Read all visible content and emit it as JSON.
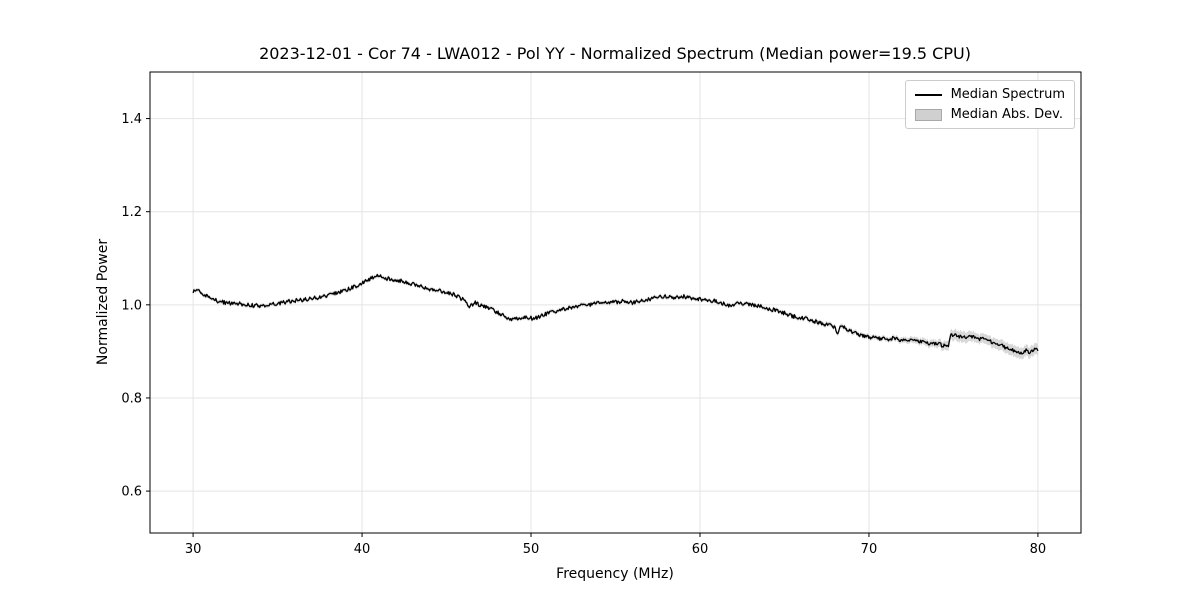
{
  "figure": {
    "background": "#ffffff"
  },
  "chart_data": {
    "type": "line",
    "title": "2023-12-01 - Cor 74 - LWA012 - Pol YY - Normalized Spectrum (Median power=19.5 CPU)",
    "xlabel": "Frequency (MHz)",
    "ylabel": "Normalized Power",
    "xlim": [
      27.45,
      82.55
    ],
    "ylim": [
      0.51,
      1.5
    ],
    "x_range": [
      30,
      80
    ],
    "x_ticks": [
      30,
      40,
      50,
      60,
      70,
      80
    ],
    "x_tick_labels": [
      "30",
      "40",
      "50",
      "60",
      "70",
      "80"
    ],
    "y_ticks": [
      0.6,
      0.8,
      1.0,
      1.2,
      1.4
    ],
    "y_tick_labels": [
      "0.6",
      "0.8",
      "1.0",
      "1.2",
      "1.4"
    ],
    "grid": true,
    "colors": {
      "grid": "#e4e4e4",
      "spine": "#000000",
      "text": "#000000",
      "background": "#ffffff"
    },
    "legend": {
      "position": "upper right",
      "entries": [
        {
          "label": "Median Spectrum",
          "type": "line",
          "color": "#000000"
        },
        {
          "label": "Median Abs. Dev.",
          "type": "patch",
          "fill": "#d0d0d0",
          "edge": "#a8a8a8"
        }
      ]
    },
    "noise_amplitude": 0.0042,
    "sample_step": 0.05,
    "series": [
      {
        "name": "Median Spectrum",
        "type": "line",
        "color": "#000000",
        "points": [
          [
            30.0,
            1.028
          ],
          [
            30.3,
            1.034
          ],
          [
            30.6,
            1.022
          ],
          [
            31.0,
            1.014
          ],
          [
            31.5,
            1.008
          ],
          [
            32.0,
            1.004
          ],
          [
            32.5,
            1.003
          ],
          [
            33.0,
            1.001
          ],
          [
            33.5,
            0.999
          ],
          [
            34.0,
            0.998
          ],
          [
            34.5,
            1.0
          ],
          [
            35.0,
            1.003
          ],
          [
            35.5,
            1.006
          ],
          [
            36.0,
            1.009
          ],
          [
            36.5,
            1.011
          ],
          [
            37.0,
            1.014
          ],
          [
            37.5,
            1.016
          ],
          [
            38.0,
            1.02
          ],
          [
            38.5,
            1.026
          ],
          [
            39.0,
            1.031
          ],
          [
            39.5,
            1.038
          ],
          [
            40.0,
            1.047
          ],
          [
            40.5,
            1.056
          ],
          [
            40.9,
            1.064
          ],
          [
            41.3,
            1.058
          ],
          [
            42.0,
            1.054
          ],
          [
            42.5,
            1.05
          ],
          [
            43.0,
            1.045
          ],
          [
            43.5,
            1.04
          ],
          [
            44.0,
            1.034
          ],
          [
            44.5,
            1.031
          ],
          [
            45.0,
            1.027
          ],
          [
            45.5,
            1.021
          ],
          [
            46.0,
            1.011
          ],
          [
            46.3,
            0.997
          ],
          [
            46.7,
            1.004
          ],
          [
            47.0,
            1.0
          ],
          [
            47.5,
            0.993
          ],
          [
            48.0,
            0.984
          ],
          [
            48.5,
            0.975
          ],
          [
            48.9,
            0.968
          ],
          [
            49.3,
            0.972
          ],
          [
            49.7,
            0.974
          ],
          [
            50.2,
            0.97
          ],
          [
            50.6,
            0.976
          ],
          [
            51.0,
            0.982
          ],
          [
            51.5,
            0.987
          ],
          [
            52.0,
            0.991
          ],
          [
            52.5,
            0.995
          ],
          [
            53.0,
            0.998
          ],
          [
            53.5,
            1.001
          ],
          [
            54.0,
            1.003
          ],
          [
            54.5,
            1.005
          ],
          [
            55.0,
            1.006
          ],
          [
            55.5,
            1.008
          ],
          [
            56.0,
            1.004
          ],
          [
            56.5,
            1.009
          ],
          [
            57.0,
            1.012
          ],
          [
            57.5,
            1.016
          ],
          [
            58.0,
            1.018
          ],
          [
            58.5,
            1.016
          ],
          [
            59.0,
            1.018
          ],
          [
            59.5,
            1.015
          ],
          [
            60.0,
            1.012
          ],
          [
            60.5,
            1.01
          ],
          [
            61.0,
            1.008
          ],
          [
            61.8,
            0.997
          ],
          [
            62.2,
            1.005
          ],
          [
            62.6,
            1.003
          ],
          [
            63.0,
            1.0
          ],
          [
            63.5,
            0.997
          ],
          [
            64.0,
            0.992
          ],
          [
            64.5,
            0.988
          ],
          [
            65.0,
            0.982
          ],
          [
            65.5,
            0.975
          ],
          [
            66.0,
            0.972
          ],
          [
            66.5,
            0.968
          ],
          [
            67.0,
            0.962
          ],
          [
            67.5,
            0.958
          ],
          [
            68.0,
            0.952
          ],
          [
            68.15,
            0.936
          ],
          [
            68.35,
            0.958
          ],
          [
            68.7,
            0.948
          ],
          [
            69.0,
            0.942
          ],
          [
            69.5,
            0.936
          ],
          [
            70.0,
            0.931
          ],
          [
            70.5,
            0.928
          ],
          [
            71.0,
            0.926
          ],
          [
            71.5,
            0.928
          ],
          [
            72.0,
            0.923
          ],
          [
            72.5,
            0.924
          ],
          [
            73.0,
            0.921
          ],
          [
            73.5,
            0.916
          ],
          [
            74.0,
            0.918
          ],
          [
            74.4,
            0.912
          ],
          [
            74.7,
            0.91
          ],
          [
            74.85,
            0.937
          ],
          [
            75.2,
            0.933
          ],
          [
            75.6,
            0.931
          ],
          [
            76.0,
            0.933
          ],
          [
            76.4,
            0.928
          ],
          [
            76.8,
            0.926
          ],
          [
            77.2,
            0.921
          ],
          [
            77.6,
            0.917
          ],
          [
            78.0,
            0.91
          ],
          [
            78.3,
            0.905
          ],
          [
            78.6,
            0.902
          ],
          [
            79.0,
            0.898
          ],
          [
            79.3,
            0.902
          ],
          [
            79.6,
            0.898
          ],
          [
            79.8,
            0.903
          ],
          [
            80.0,
            0.905
          ]
        ]
      },
      {
        "name": "Median Abs. Dev.",
        "type": "band",
        "fill": "#c8c8c8",
        "opacity": 0.7,
        "half_width": [
          [
            30,
            0.004
          ],
          [
            65,
            0.004
          ],
          [
            68,
            0.005
          ],
          [
            71,
            0.005
          ],
          [
            72,
            0.006
          ],
          [
            73,
            0.007
          ],
          [
            74,
            0.008
          ],
          [
            74.9,
            0.011
          ],
          [
            75.5,
            0.012
          ],
          [
            76.5,
            0.01
          ],
          [
            77.5,
            0.011
          ],
          [
            78.5,
            0.012
          ],
          [
            80,
            0.012
          ]
        ]
      }
    ]
  }
}
